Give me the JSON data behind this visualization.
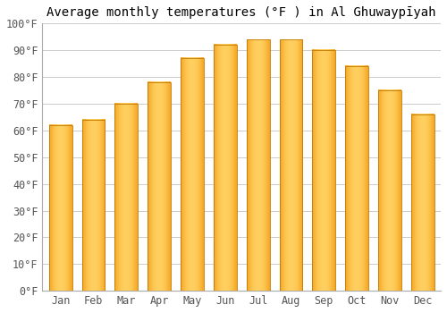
{
  "title": "Average monthly temperatures (°F ) in Al Ghuwayрīyah",
  "months": [
    "Jan",
    "Feb",
    "Mar",
    "Apr",
    "May",
    "Jun",
    "Jul",
    "Aug",
    "Sep",
    "Oct",
    "Nov",
    "Dec"
  ],
  "values": [
    62,
    64,
    70,
    78,
    87,
    92,
    94,
    94,
    90,
    84,
    75,
    66
  ],
  "bar_color_center": "#FFD060",
  "bar_color_edge": "#F5A623",
  "bar_outline_color": "#C07800",
  "ylim": [
    0,
    100
  ],
  "ytick_step": 10,
  "background_color": "#ffffff",
  "grid_color": "#cccccc",
  "title_fontsize": 10,
  "tick_fontsize": 8.5,
  "figsize": [
    5.0,
    3.5
  ],
  "dpi": 100,
  "bar_width": 0.7
}
